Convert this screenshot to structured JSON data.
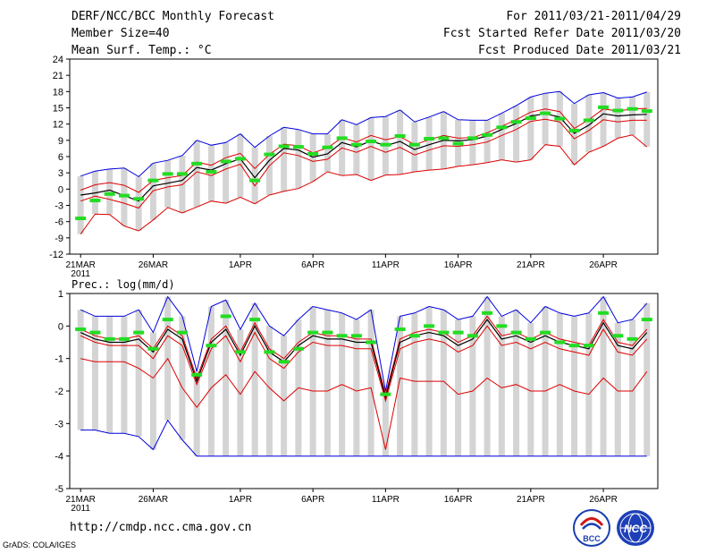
{
  "header": {
    "title": "DERF/NCC/BCC Monthly Forecast",
    "member_size": "Member Size=40",
    "variable": "Mean Surf. Temp.: °C",
    "period": "For 2011/03/21-2011/04/29",
    "started": "Fcst Started Refer Date 2011/03/20",
    "produced": "Fcst Produced Date 2011/03/21"
  },
  "footer": {
    "url": "http://cmdp.ncc.cma.gov.cn",
    "credit": "GrADS: COLA/IGES",
    "logo_bcc": "BCC",
    "logo_ncc": "NCC"
  },
  "colors": {
    "max_min": "#0000dd",
    "quartile": "#dd0000",
    "mean": "#000000",
    "observed": "#22dd22",
    "box": "#d4d4d4"
  },
  "chart_data": [
    {
      "type": "line",
      "name": "temperature",
      "title": "Mean Surf. Temp.: °C",
      "xlabel": "",
      "ylabel": "°C",
      "ylim": [
        -12,
        24
      ],
      "yticks": [
        -12,
        -9,
        -6,
        -3,
        0,
        3,
        6,
        9,
        12,
        15,
        18,
        21,
        24
      ],
      "ytick_labels": [
        "-12",
        "-9",
        "-6",
        "-3",
        "0",
        "3",
        "6",
        "9",
        "12",
        "15",
        "18",
        "21",
        "24"
      ],
      "xticks": [
        1,
        6,
        12,
        17,
        22,
        27,
        32,
        37
      ],
      "xtick_labels": [
        "21MAR",
        "26MAR",
        "1APR",
        "6APR",
        "11APR",
        "16APR",
        "21APR",
        "26APR"
      ],
      "year_label": "2011",
      "x": [
        1,
        2,
        3,
        4,
        5,
        6,
        7,
        8,
        9,
        10,
        11,
        12,
        13,
        14,
        15,
        16,
        17,
        18,
        19,
        20,
        21,
        22,
        23,
        24,
        25,
        26,
        27,
        28,
        29,
        30,
        31,
        32,
        33,
        34,
        35,
        36,
        37,
        38,
        39,
        40
      ],
      "series": [
        {
          "name": "max",
          "values": [
            2.4,
            3.3,
            3.7,
            3.9,
            2.3,
            4.8,
            5.3,
            6.2,
            9.0,
            8.1,
            8.6,
            10.2,
            7.7,
            9.8,
            11.4,
            11.0,
            10.2,
            10.2,
            12.8,
            11.9,
            13.2,
            13.4,
            14.6,
            12.4,
            13.3,
            14.3,
            12.8,
            12.7,
            12.7,
            14.0,
            15.4,
            17.0,
            17.7,
            18.0,
            15.8,
            17.4,
            17.8,
            16.8,
            17.0,
            17.9
          ]
        },
        {
          "name": "q75",
          "values": [
            -0.2,
            0.8,
            1.2,
            0.7,
            -0.6,
            1.6,
            2.1,
            2.5,
            5.0,
            4.4,
            5.8,
            6.6,
            3.8,
            6.4,
            8.3,
            8.0,
            6.7,
            7.6,
            9.5,
            8.7,
            9.9,
            9.1,
            9.7,
            8.2,
            9.1,
            9.9,
            9.4,
            9.5,
            10.4,
            11.6,
            12.8,
            14.2,
            14.8,
            14.3,
            11.2,
            12.8,
            14.8,
            14.4,
            14.8,
            14.9
          ]
        },
        {
          "name": "mean",
          "values": [
            -1.1,
            -0.7,
            -0.2,
            -1.2,
            -2.2,
            0.6,
            1.1,
            1.6,
            4.0,
            3.5,
            4.7,
            5.6,
            2.1,
            5.3,
            7.5,
            7.2,
            5.9,
            6.5,
            8.6,
            7.8,
            8.9,
            8.0,
            8.8,
            7.3,
            8.2,
            9.0,
            8.9,
            9.1,
            9.8,
            11.0,
            12.1,
            13.5,
            13.9,
            13.3,
            10.3,
            11.8,
            13.9,
            13.5,
            13.7,
            13.8
          ]
        },
        {
          "name": "q25",
          "values": [
            -2.2,
            -1.3,
            -1.9,
            -2.6,
            -3.5,
            -0.3,
            0.4,
            0.8,
            3.2,
            2.5,
            3.7,
            4.6,
            0.6,
            4.3,
            6.7,
            6.2,
            5.1,
            5.5,
            7.6,
            6.8,
            7.9,
            6.8,
            7.7,
            6.3,
            7.2,
            8.0,
            7.9,
            8.2,
            8.7,
            9.9,
            11.0,
            12.5,
            12.9,
            12.4,
            9.3,
            10.8,
            12.8,
            12.4,
            12.7,
            12.7
          ]
        },
        {
          "name": "min",
          "values": [
            -8.3,
            -4.6,
            -4.7,
            -6.8,
            -7.7,
            -5.7,
            -3.4,
            -4.4,
            -3.3,
            -2.2,
            -2.6,
            -1.5,
            -2.7,
            -1.1,
            -0.4,
            0.1,
            1.4,
            3.2,
            2.5,
            2.7,
            1.6,
            2.6,
            2.7,
            3.2,
            3.5,
            3.7,
            4.2,
            4.5,
            4.9,
            5.4,
            5.0,
            5.4,
            8.2,
            7.9,
            4.5,
            6.8,
            7.9,
            9.4,
            10.0,
            7.8
          ]
        },
        {
          "name": "observed",
          "values": [
            -5.4,
            -2.1,
            -0.9,
            -1.2,
            -1.8,
            1.6,
            2.8,
            2.8,
            4.7,
            3.2,
            5.1,
            5.6,
            1.6,
            6.4,
            7.9,
            7.8,
            6.5,
            7.7,
            9.4,
            8.2,
            8.8,
            8.2,
            9.8,
            8.2,
            9.3,
            9.4,
            8.4,
            9.4,
            10.0,
            11.4,
            12.4,
            13.1,
            14.0,
            13.0,
            10.8,
            12.7,
            15.1,
            14.5,
            14.8,
            14.4
          ]
        }
      ]
    },
    {
      "type": "line",
      "name": "precipitation",
      "title": "Prec.: log(mm/d)",
      "xlabel": "",
      "ylabel": "log(mm/d)",
      "ylim": [
        -5,
        1
      ],
      "yticks": [
        -5,
        -4,
        -3,
        -2,
        -1,
        0,
        1
      ],
      "ytick_labels": [
        "-5",
        "-4",
        "-3",
        "-2",
        "-1",
        "0",
        "1"
      ],
      "xticks": [
        1,
        6,
        12,
        17,
        22,
        27,
        32,
        37
      ],
      "xtick_labels": [
        "21MAR",
        "26MAR",
        "1APR",
        "6APR",
        "11APR",
        "16APR",
        "21APR",
        "26APR"
      ],
      "year_label": "2011",
      "x": [
        1,
        2,
        3,
        4,
        5,
        6,
        7,
        8,
        9,
        10,
        11,
        12,
        13,
        14,
        15,
        16,
        17,
        18,
        19,
        20,
        21,
        22,
        23,
        24,
        25,
        26,
        27,
        28,
        29,
        30,
        31,
        32,
        33,
        34,
        35,
        36,
        37,
        38,
        39,
        40
      ],
      "series": [
        {
          "name": "max",
          "values": [
            0.5,
            0.3,
            0.3,
            0.3,
            0.5,
            -0.2,
            0.9,
            0.3,
            -1.4,
            0.6,
            0.8,
            -0.1,
            0.7,
            0.0,
            -0.3,
            0.2,
            0.6,
            0.5,
            0.4,
            0.2,
            0.5,
            -2.0,
            0.3,
            0.4,
            0.6,
            0.5,
            0.2,
            0.3,
            0.9,
            0.3,
            0.5,
            0.1,
            0.6,
            0.4,
            0.3,
            0.4,
            0.9,
            0.1,
            0.2,
            0.7
          ]
        },
        {
          "name": "q75",
          "values": [
            -0.1,
            -0.3,
            -0.4,
            -0.4,
            -0.3,
            -0.7,
            0.0,
            -0.3,
            -1.6,
            -0.4,
            0.0,
            -0.8,
            0.1,
            -0.7,
            -1.0,
            -0.5,
            -0.2,
            -0.3,
            -0.3,
            -0.4,
            -0.4,
            -2.1,
            -0.4,
            -0.2,
            -0.1,
            -0.2,
            -0.5,
            -0.3,
            0.3,
            -0.3,
            -0.2,
            -0.4,
            -0.2,
            -0.4,
            -0.5,
            -0.6,
            0.2,
            -0.5,
            -0.6,
            -0.1
          ]
        },
        {
          "name": "mean",
          "values": [
            -0.2,
            -0.4,
            -0.5,
            -0.5,
            -0.4,
            -0.8,
            -0.1,
            -0.4,
            -1.7,
            -0.5,
            -0.1,
            -0.9,
            0.0,
            -0.8,
            -1.1,
            -0.6,
            -0.3,
            -0.4,
            -0.4,
            -0.5,
            -0.5,
            -2.2,
            -0.5,
            -0.3,
            -0.2,
            -0.3,
            -0.6,
            -0.4,
            0.2,
            -0.4,
            -0.3,
            -0.5,
            -0.3,
            -0.5,
            -0.6,
            -0.7,
            0.1,
            -0.6,
            -0.7,
            -0.2
          ]
        },
        {
          "name": "q25",
          "values": [
            -0.3,
            -0.5,
            -0.6,
            -0.6,
            -0.6,
            -1.0,
            -0.3,
            -0.6,
            -1.8,
            -0.7,
            -0.3,
            -1.1,
            -0.2,
            -1.0,
            -1.3,
            -0.8,
            -0.5,
            -0.6,
            -0.6,
            -0.7,
            -0.7,
            -2.3,
            -0.7,
            -0.5,
            -0.4,
            -0.5,
            -0.8,
            -0.6,
            0.0,
            -0.6,
            -0.5,
            -0.7,
            -0.5,
            -0.7,
            -0.8,
            -0.9,
            -0.1,
            -0.8,
            -0.9,
            -0.4
          ]
        },
        {
          "name": "min",
          "values": [
            -1.0,
            -1.1,
            -1.1,
            -1.1,
            -1.3,
            -1.6,
            -1.0,
            -1.9,
            -2.5,
            -1.9,
            -1.5,
            -2.1,
            -1.4,
            -1.9,
            -2.3,
            -1.9,
            -2.0,
            -2.0,
            -1.8,
            -2.0,
            -1.9,
            -3.8,
            -1.6,
            -1.7,
            -1.7,
            -1.7,
            -2.1,
            -2.0,
            -1.6,
            -1.9,
            -1.8,
            -2.0,
            -2.0,
            -1.8,
            -2.0,
            -2.1,
            -1.6,
            -2.0,
            -2.0,
            -1.4
          ]
        },
        {
          "name": "floor",
          "values": [
            -3.2,
            -3.2,
            -3.3,
            -3.3,
            -3.4,
            -3.8,
            -2.9,
            -3.5,
            -4.0,
            -4.0,
            -4.0,
            -4.0,
            -4.0,
            -4.0,
            -4.0,
            -4.0,
            -4.0,
            -4.0,
            -4.0,
            -4.0,
            -4.0,
            -4.0,
            -4.0,
            -4.0,
            -4.0,
            -4.0,
            -4.0,
            -4.0,
            -4.0,
            -4.0,
            -4.0,
            -4.0,
            -4.0,
            -4.0,
            -4.0,
            -4.0,
            -4.0,
            -4.0,
            -4.0,
            -4.0
          ]
        },
        {
          "name": "observed",
          "values": [
            -0.1,
            -0.2,
            -0.4,
            -0.4,
            -0.2,
            -0.7,
            0.2,
            -0.2,
            -1.5,
            -0.6,
            0.3,
            -0.8,
            0.2,
            -0.8,
            -1.1,
            -0.7,
            -0.2,
            -0.2,
            -0.3,
            -0.3,
            -0.5,
            -2.1,
            -0.1,
            -0.3,
            0.0,
            -0.2,
            -0.2,
            -0.3,
            0.4,
            0.0,
            -0.2,
            -0.4,
            -0.2,
            -0.5,
            -0.6,
            -0.6,
            0.4,
            -0.3,
            -0.4,
            0.2
          ]
        }
      ]
    }
  ]
}
